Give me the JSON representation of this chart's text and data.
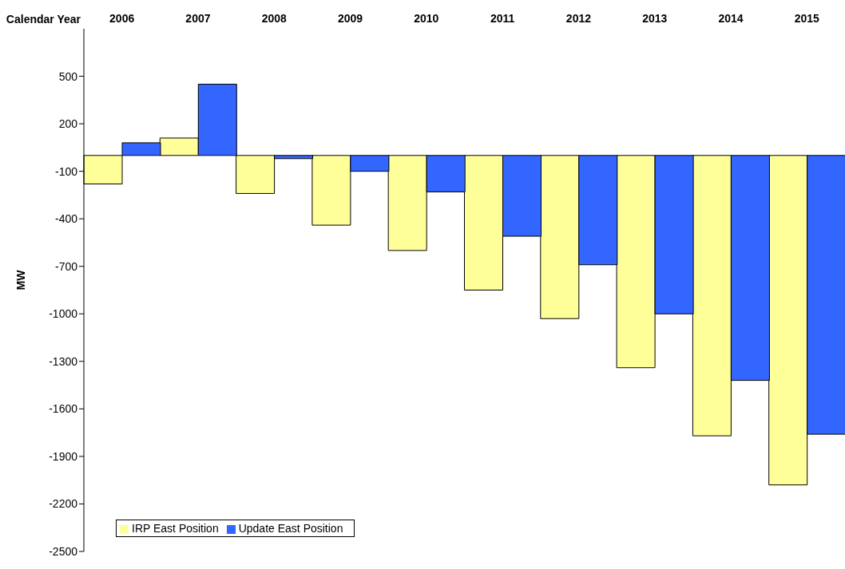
{
  "chart_data": {
    "type": "bar",
    "xlabel": "Calendar Year",
    "ylabel": "MW",
    "categories": [
      "2006",
      "2007",
      "2008",
      "2009",
      "2010",
      "2011",
      "2012",
      "2013",
      "2014",
      "2015"
    ],
    "series": [
      {
        "name": "IRP East Position",
        "color": "#ffff99",
        "values": [
          -180,
          110,
          -240,
          -440,
          -600,
          -850,
          -1030,
          -1340,
          -1770,
          -2080
        ]
      },
      {
        "name": "Update East Position",
        "color": "#3366ff",
        "values": [
          80,
          450,
          -20,
          -100,
          -230,
          -510,
          -690,
          -1000,
          -1420,
          -1760
        ]
      }
    ],
    "ylim": [
      -2500,
      800
    ],
    "yticks": [
      -2500,
      -2200,
      -1900,
      -1600,
      -1300,
      -1000,
      -700,
      -400,
      -100,
      200,
      500
    ],
    "grid": false,
    "legend": "bottom left"
  }
}
